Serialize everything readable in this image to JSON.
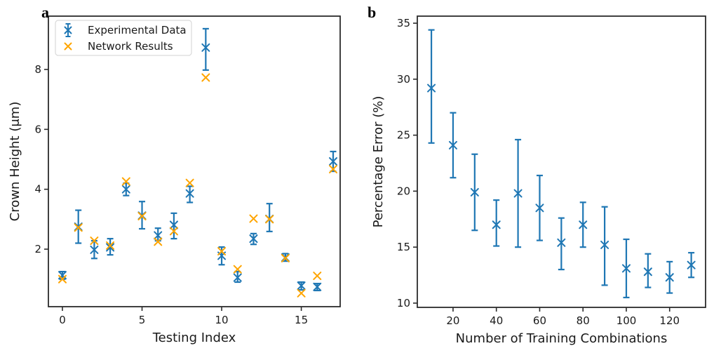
{
  "panels": [
    {
      "tag": "a"
    },
    {
      "tag": "b"
    }
  ],
  "colors": {
    "experimental_blue": "#1f77b4",
    "network_orange": "#ffa500",
    "axis": "#2b2b2b",
    "text": "#1a1a1a",
    "legend_border": "#d9d9d9",
    "background": "#ffffff"
  },
  "chart_data": [
    {
      "type": "scatter",
      "panel": "a",
      "title": "",
      "xlabel": "Testing Index",
      "ylabel": "Crown Height (μm)",
      "xlim": [
        -0.88,
        17.44
      ],
      "ylim": [
        0.08,
        9.78
      ],
      "xticks": [
        0,
        5,
        10,
        15
      ],
      "yticks": [
        2,
        4,
        6,
        8
      ],
      "grid": false,
      "legend": {
        "position": "upper left",
        "entries": [
          "Experimental Data",
          "Network Results"
        ]
      },
      "series": [
        {
          "name": "Experimental Data",
          "color": "#1f77b4",
          "marker": "x",
          "errorbars": true,
          "x": [
            0,
            1,
            2,
            3,
            4,
            5,
            6,
            7,
            8,
            9,
            10,
            11,
            12,
            13,
            14,
            15,
            16,
            17
          ],
          "y": [
            1.13,
            2.75,
            1.98,
            2.06,
            4.0,
            3.12,
            2.46,
            2.81,
            3.86,
            8.73,
            1.78,
            1.05,
            2.35,
            3.01,
            1.72,
            0.78,
            0.74,
            4.93
          ],
          "err_low": [
            1.0,
            2.2,
            1.69,
            1.81,
            3.79,
            2.68,
            2.28,
            2.35,
            3.56,
            7.98,
            1.48,
            0.9,
            2.16,
            2.59,
            1.6,
            0.64,
            0.62,
            4.6
          ],
          "err_high": [
            1.25,
            3.3,
            2.28,
            2.35,
            4.2,
            3.59,
            2.7,
            3.2,
            4.1,
            9.36,
            2.07,
            1.25,
            2.52,
            3.52,
            1.85,
            0.9,
            0.85,
            5.26
          ]
        },
        {
          "name": "Network Results",
          "color": "#ffa500",
          "marker": "x",
          "errorbars": false,
          "x": [
            0,
            1,
            2,
            3,
            4,
            5,
            6,
            7,
            8,
            9,
            10,
            11,
            12,
            13,
            14,
            15,
            16,
            17
          ],
          "y": [
            1.0,
            2.72,
            2.28,
            2.12,
            4.26,
            3.1,
            2.25,
            2.6,
            4.21,
            7.73,
            1.93,
            1.33,
            3.02,
            3.0,
            1.7,
            0.53,
            1.11,
            4.67
          ]
        }
      ]
    },
    {
      "type": "scatter",
      "panel": "b",
      "title": "",
      "xlabel": "Number of Training Combinations",
      "ylabel": "Percentage Error (%)",
      "xlim": [
        3.5,
        136.6
      ],
      "ylim": [
        9.62,
        35.63
      ],
      "xticks": [
        20,
        40,
        60,
        80,
        100,
        120
      ],
      "yticks": [
        10,
        15,
        20,
        25,
        30,
        35
      ],
      "grid": false,
      "legend": null,
      "series": [
        {
          "name": "Percentage Error",
          "color": "#1f77b4",
          "marker": "x",
          "errorbars": true,
          "x": [
            10,
            20,
            30,
            40,
            50,
            60,
            70,
            80,
            90,
            100,
            110,
            120,
            130
          ],
          "y": [
            29.2,
            24.1,
            19.9,
            17.0,
            19.8,
            18.5,
            15.4,
            17.0,
            15.2,
            13.1,
            12.8,
            12.3,
            13.4
          ],
          "err_low": [
            24.3,
            21.2,
            16.5,
            15.1,
            15.0,
            15.6,
            13.0,
            15.0,
            11.6,
            10.5,
            11.4,
            10.9,
            12.3
          ],
          "err_high": [
            34.4,
            27.0,
            23.3,
            19.2,
            24.6,
            21.4,
            17.6,
            19.0,
            18.6,
            15.7,
            14.4,
            13.7,
            14.5
          ]
        }
      ]
    }
  ]
}
